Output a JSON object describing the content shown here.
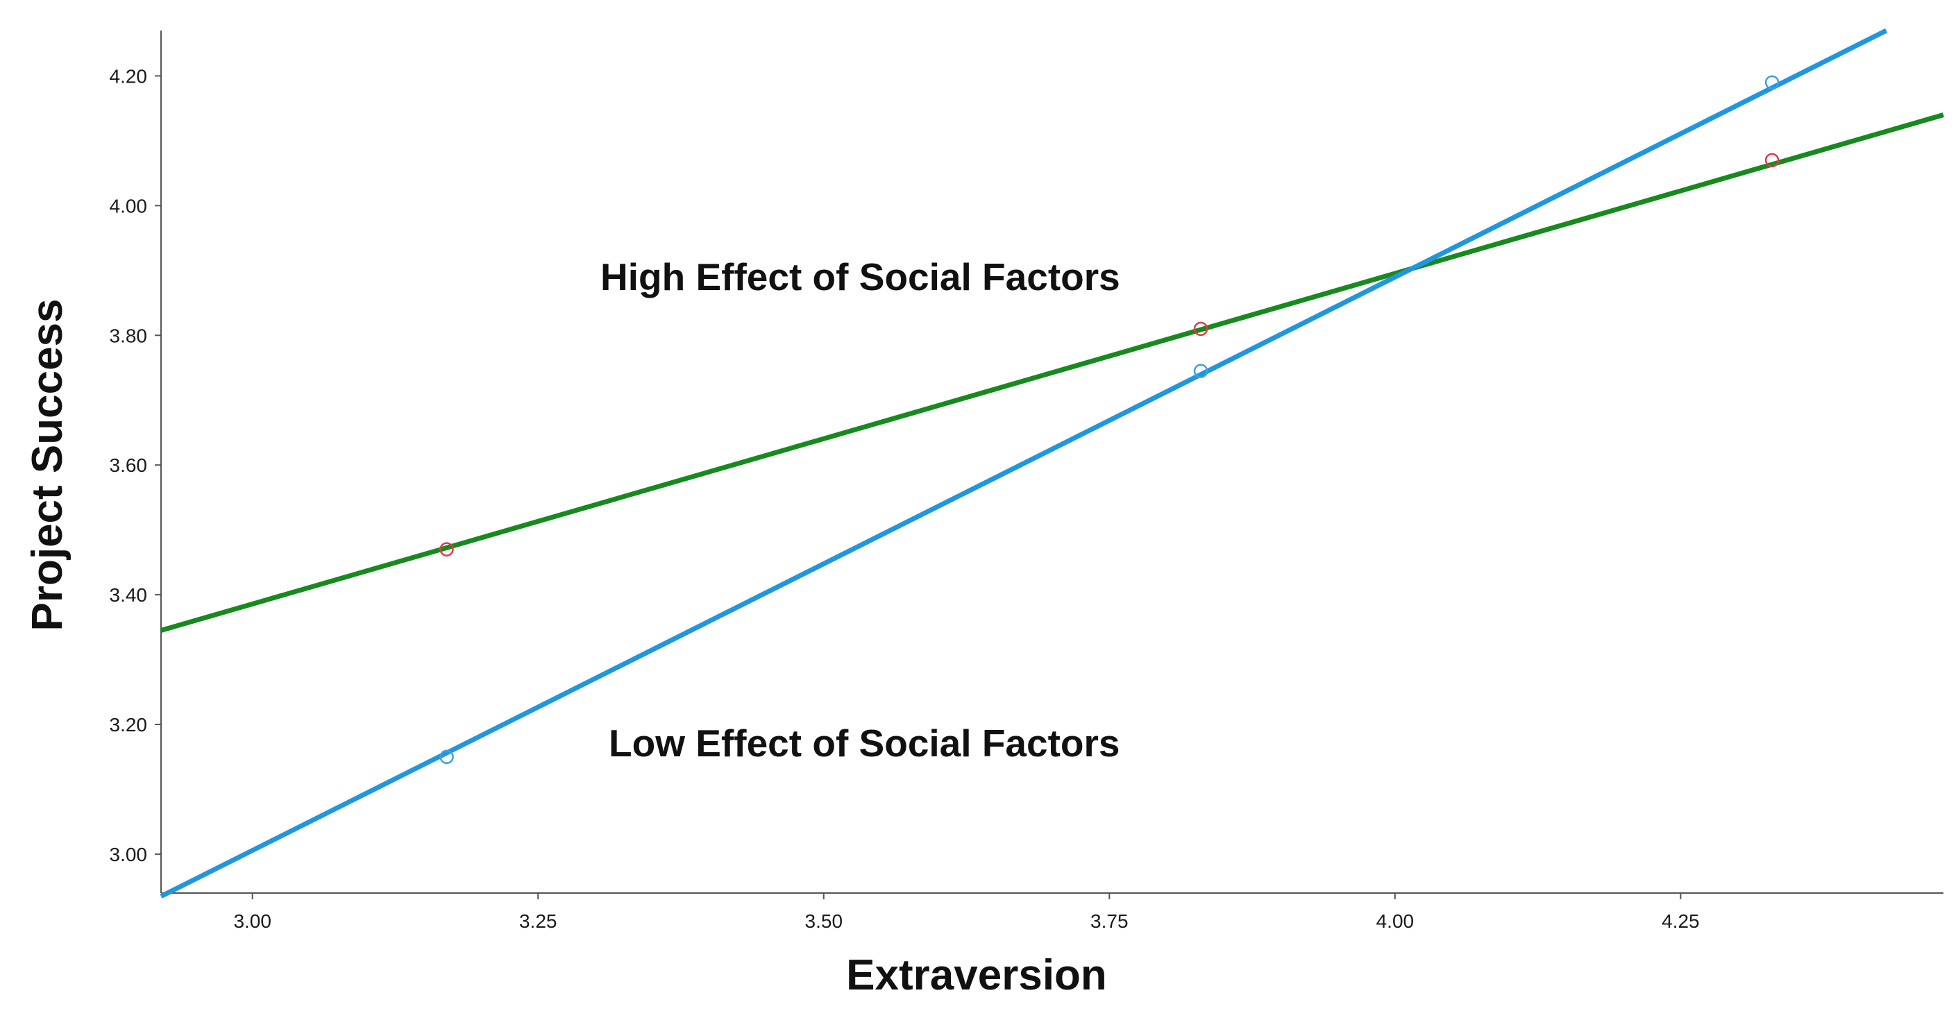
{
  "chart_data": {
    "type": "line",
    "title": "",
    "xlabel": "Extraversion",
    "ylabel": "Project Success",
    "xlim": [
      2.92,
      4.48
    ],
    "ylim": [
      2.94,
      4.27
    ],
    "x_ticks": [
      3.0,
      3.25,
      3.5,
      3.75,
      4.0,
      4.25
    ],
    "x_tick_labels": [
      "3.00",
      "3.25",
      "3.50",
      "3.75",
      "4.00",
      "4.25"
    ],
    "y_ticks": [
      3.0,
      3.2,
      3.4,
      3.6,
      3.8,
      4.0,
      4.2
    ],
    "y_tick_labels": [
      "3.00",
      "3.20",
      "3.40",
      "3.60",
      "3.80",
      "4.00",
      "4.20"
    ],
    "grid": false,
    "series": [
      {
        "name": "High Effect of Social Factors",
        "color": "#178a1e",
        "marker_color": "#e0394a",
        "points": [
          {
            "x": 3.17,
            "y": 3.47
          },
          {
            "x": 3.83,
            "y": 3.81
          },
          {
            "x": 4.33,
            "y": 4.07
          }
        ],
        "fit_line": [
          {
            "x": 2.92,
            "y": 3.345
          },
          {
            "x": 4.48,
            "y": 4.14
          }
        ]
      },
      {
        "name": "Low Effect of Social Factors",
        "color": "#1f97e0",
        "marker_color": "#3aa0e8",
        "points": [
          {
            "x": 3.17,
            "y": 3.15
          },
          {
            "x": 3.83,
            "y": 3.745
          },
          {
            "x": 4.33,
            "y": 4.19
          }
        ],
        "fit_line": [
          {
            "x": 2.92,
            "y": 2.935
          },
          {
            "x": 4.43,
            "y": 4.27
          }
        ]
      }
    ],
    "annotations": [
      {
        "text": "High Effect of Social Factors",
        "series": 0
      },
      {
        "text": "Low Effect of Social Factors",
        "series": 1
      }
    ]
  }
}
